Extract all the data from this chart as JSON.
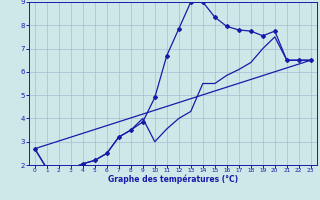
{
  "xlabel": "Graphe des températures (°C)",
  "xlim": [
    -0.5,
    23.5
  ],
  "ylim": [
    2,
    9
  ],
  "xticks": [
    0,
    1,
    2,
    3,
    4,
    5,
    6,
    7,
    8,
    9,
    10,
    11,
    12,
    13,
    14,
    15,
    16,
    17,
    18,
    19,
    20,
    21,
    22,
    23
  ],
  "yticks": [
    2,
    3,
    4,
    5,
    6,
    7,
    8,
    9
  ],
  "background_color": "#cce8e8",
  "grid_color": "#aabbd4",
  "line_color": "#1a1aaa",
  "curve1_x": [
    0,
    1,
    2,
    3,
    4,
    5,
    6,
    7,
    8,
    9,
    10,
    11,
    12,
    13,
    14,
    15,
    16,
    17,
    18,
    19,
    20,
    21,
    22,
    23
  ],
  "curve1_y": [
    2.7,
    1.85,
    1.85,
    1.85,
    2.05,
    2.2,
    2.5,
    3.2,
    3.5,
    3.85,
    4.9,
    6.7,
    7.85,
    9.0,
    9.0,
    8.35,
    7.95,
    7.8,
    7.75,
    7.55,
    7.75,
    6.5,
    6.5,
    6.5
  ],
  "curve2_x": [
    0,
    1,
    2,
    3,
    4,
    5,
    6,
    7,
    8,
    9,
    10,
    11,
    12,
    13,
    14,
    15,
    16,
    17,
    18,
    19,
    20,
    21,
    22,
    23
  ],
  "curve2_y": [
    2.7,
    1.85,
    1.85,
    1.85,
    2.05,
    2.2,
    2.5,
    3.2,
    3.5,
    4.0,
    3.0,
    3.55,
    4.0,
    4.3,
    5.5,
    5.5,
    5.85,
    6.1,
    6.4,
    7.0,
    7.5,
    6.5,
    6.5,
    6.5
  ],
  "curve3_x": [
    0,
    23
  ],
  "curve3_y": [
    2.7,
    6.5
  ],
  "marker_size": 2.0,
  "line_width": 0.9
}
